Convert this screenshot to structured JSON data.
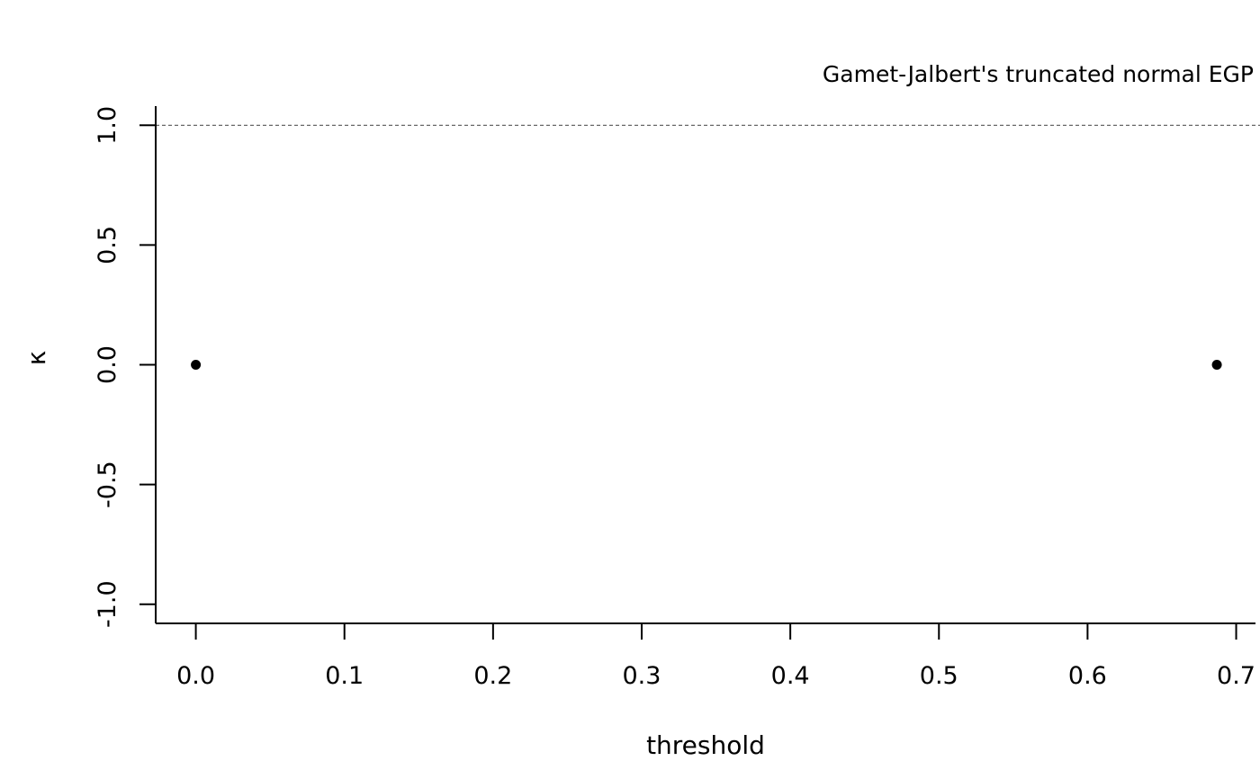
{
  "chart_data": {
    "type": "scatter",
    "title": "Gamet-Jalbert's truncated normal EGP",
    "xlabel": "threshold",
    "ylabel": "κ",
    "xlim": [
      -0.027,
      0.713
    ],
    "ylim": [
      -1.08,
      1.08
    ],
    "x_ticks": [
      0.0,
      0.1,
      0.2,
      0.3,
      0.4,
      0.5,
      0.6,
      0.7
    ],
    "x_tick_labels": [
      "0.0",
      "0.1",
      "0.2",
      "0.3",
      "0.4",
      "0.5",
      "0.6",
      "0.7"
    ],
    "y_ticks": [
      -1.0,
      -0.5,
      0.0,
      0.5,
      1.0
    ],
    "y_tick_labels": [
      "-1.0",
      "-0.5",
      "0.0",
      "0.5",
      "1.0"
    ],
    "reference_line": {
      "y": 1.0,
      "style": "dashed",
      "color": "#555555"
    },
    "series": [
      {
        "points": [
          {
            "x": 0.0,
            "y": 0.0
          },
          {
            "x": 0.687,
            "y": 0.0
          }
        ],
        "color": "#000000",
        "marker": "filled-circle"
      }
    ],
    "grid": false,
    "legend": "none"
  }
}
